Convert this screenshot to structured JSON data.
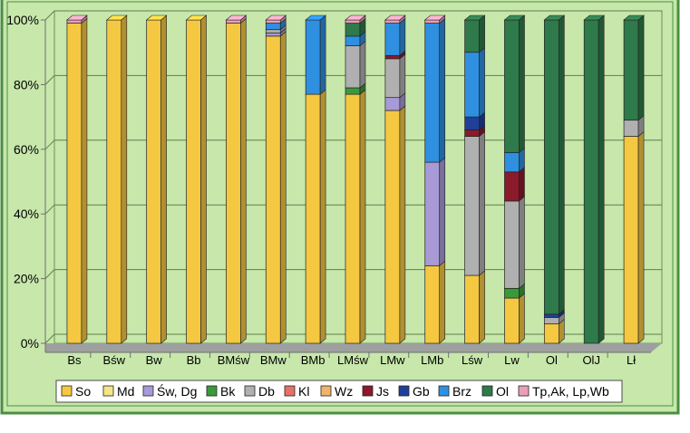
{
  "chart_data": {
    "type": "bar",
    "stacked": true,
    "style": "3d-stacked-column",
    "categories": [
      "Bs",
      "Bśw",
      "Bw",
      "Bb",
      "BMśw",
      "BMw",
      "BMb",
      "LMśw",
      "LMw",
      "LMb",
      "Lśw",
      "Lw",
      "Ol",
      "OlJ",
      "Lł"
    ],
    "yticks": [
      "0%",
      "20%",
      "40%",
      "60%",
      "80%",
      "100%"
    ],
    "ylim": [
      0,
      100
    ],
    "grid": true,
    "legend_position": "bottom",
    "plot_background": "#c5e6a6",
    "series": [
      {
        "name": "So",
        "color": "#f5c842",
        "values": [
          99,
          100,
          100,
          100,
          99,
          95,
          77,
          77,
          72,
          24,
          21,
          14,
          6,
          0,
          64
        ]
      },
      {
        "name": "Md",
        "color": "#f4e48a",
        "values": [
          0,
          0,
          0,
          0,
          0,
          0,
          0,
          0,
          0,
          0,
          0,
          0,
          0,
          0,
          0
        ]
      },
      {
        "name": "Św, Dg",
        "color": "#a79ad6",
        "values": [
          0,
          0,
          0,
          0,
          0,
          1,
          0,
          0,
          4,
          32,
          0,
          0,
          0,
          0,
          0
        ]
      },
      {
        "name": "Bk",
        "color": "#3a9a3a",
        "values": [
          0,
          0,
          0,
          0,
          0,
          0,
          0,
          2,
          0,
          0,
          0,
          3,
          0,
          0,
          0
        ]
      },
      {
        "name": "Db",
        "color": "#b0b0b0",
        "values": [
          0,
          0,
          0,
          0,
          0,
          1,
          0,
          13,
          12,
          0,
          43,
          27,
          2,
          0,
          5
        ]
      },
      {
        "name": "Kl",
        "color": "#e57366",
        "values": [
          0,
          0,
          0,
          0,
          0,
          0,
          0,
          0,
          0,
          0,
          0,
          0,
          0,
          0,
          0
        ]
      },
      {
        "name": "Wz",
        "color": "#f0b36a",
        "values": [
          0,
          0,
          0,
          0,
          0,
          0,
          0,
          0,
          0,
          0,
          0,
          0,
          0,
          0,
          0
        ]
      },
      {
        "name": "Js",
        "color": "#8b1a2a",
        "values": [
          0,
          0,
          0,
          0,
          0,
          0,
          0,
          0,
          1,
          0,
          2,
          9,
          0,
          0,
          0
        ]
      },
      {
        "name": "Gb",
        "color": "#1f3f9a",
        "values": [
          0,
          0,
          0,
          0,
          0,
          0,
          0,
          0,
          0,
          0,
          4,
          0,
          1,
          0,
          0
        ]
      },
      {
        "name": "Brz",
        "color": "#2f8fe0",
        "values": [
          0,
          0,
          0,
          0,
          0,
          2,
          23,
          3,
          10,
          43,
          20,
          6,
          0,
          0,
          0
        ]
      },
      {
        "name": "Ol",
        "color": "#2f7a4a",
        "values": [
          0,
          0,
          0,
          0,
          0,
          0,
          0,
          4,
          0,
          0,
          10,
          41,
          91,
          100,
          31
        ]
      },
      {
        "name": "Tp,Ak, Lp,Wb",
        "color": "#e8a0b8",
        "values": [
          1,
          0,
          0,
          0,
          1,
          1,
          0,
          1,
          1,
          1,
          0,
          0,
          0,
          0,
          0
        ]
      }
    ]
  }
}
